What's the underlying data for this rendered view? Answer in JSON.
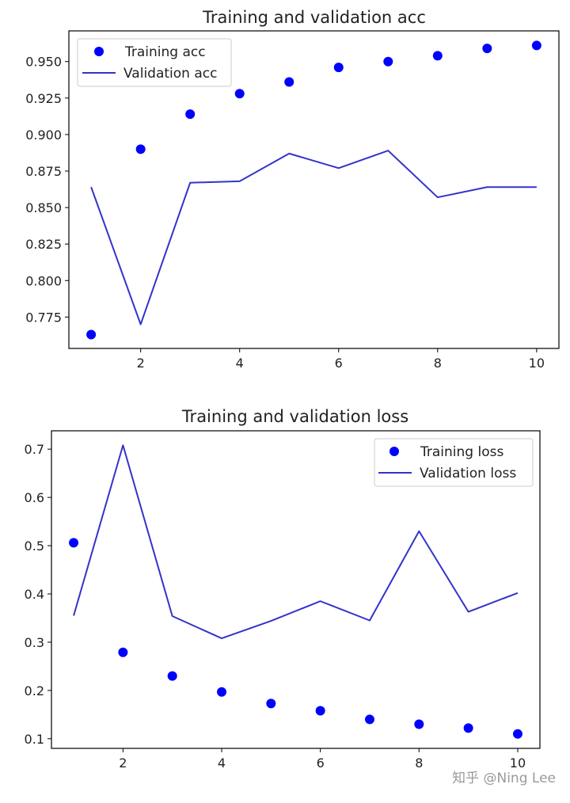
{
  "chart_data": [
    {
      "type": "line",
      "title": "Training and validation acc",
      "x": [
        1,
        2,
        3,
        4,
        5,
        6,
        7,
        8,
        9,
        10
      ],
      "series": [
        {
          "name": "Training acc",
          "style": "points",
          "color": "#0000ff",
          "values": [
            0.763,
            0.89,
            0.914,
            0.928,
            0.936,
            0.946,
            0.95,
            0.954,
            0.959,
            0.961
          ]
        },
        {
          "name": "Validation acc",
          "style": "line",
          "color": "#3333cc",
          "values": [
            0.864,
            0.77,
            0.867,
            0.868,
            0.887,
            0.877,
            0.889,
            0.857,
            0.864,
            0.864
          ]
        }
      ],
      "xlim": [
        0.55,
        10.45
      ],
      "ylim": [
        0.7535,
        0.971
      ],
      "xticks": [
        2,
        4,
        6,
        8,
        10
      ],
      "xtick_labels": [
        "2",
        "4",
        "6",
        "8",
        "10"
      ],
      "yticks": [
        0.775,
        0.8,
        0.825,
        0.85,
        0.875,
        0.9,
        0.925,
        0.95
      ],
      "ytick_labels": [
        "0.775",
        "0.800",
        "0.825",
        "0.850",
        "0.875",
        "0.900",
        "0.925",
        "0.950"
      ],
      "legend": "top-left",
      "grid": false
    },
    {
      "type": "line",
      "title": "Training and validation loss",
      "x": [
        1,
        2,
        3,
        4,
        5,
        6,
        7,
        8,
        9,
        10
      ],
      "series": [
        {
          "name": "Training loss",
          "style": "points",
          "color": "#0000ff",
          "values": [
            0.506,
            0.279,
            0.23,
            0.197,
            0.173,
            0.158,
            0.14,
            0.13,
            0.122,
            0.11
          ]
        },
        {
          "name": "Validation loss",
          "style": "line",
          "color": "#3333cc",
          "values": [
            0.355,
            0.708,
            0.354,
            0.308,
            0.344,
            0.385,
            0.345,
            0.53,
            0.363,
            0.402
          ]
        }
      ],
      "xlim": [
        0.55,
        10.45
      ],
      "ylim": [
        0.08,
        0.738
      ],
      "xticks": [
        2,
        4,
        6,
        8,
        10
      ],
      "xtick_labels": [
        "2",
        "4",
        "6",
        "8",
        "10"
      ],
      "yticks": [
        0.1,
        0.2,
        0.3,
        0.4,
        0.5,
        0.6,
        0.7
      ],
      "ytick_labels": [
        "0.1",
        "0.2",
        "0.3",
        "0.4",
        "0.5",
        "0.6",
        "0.7"
      ],
      "legend": "top-right",
      "grid": false
    }
  ],
  "watermark": "知乎 @Ning Lee"
}
